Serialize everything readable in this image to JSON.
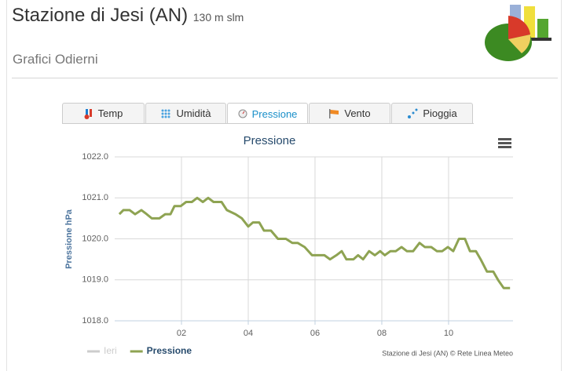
{
  "header": {
    "title": "Stazione di Jesi (AN)",
    "altitude": "130 m slm",
    "subtitle": "Grafici Odierni"
  },
  "tabs": [
    "Temp",
    "Umidità",
    "Pressione",
    "Vento",
    "Pioggia"
  ],
  "active_tab": 2,
  "chart_data": {
    "type": "line",
    "title": "Pressione",
    "y_label": "Pressione hPa",
    "credits": "Stazione di Jesi (AN) © Rete Linea Meteo",
    "xlim": [
      0,
      11.93
    ],
    "xticks": [
      {
        "value": 2,
        "label": "02"
      },
      {
        "value": 4,
        "label": "04"
      },
      {
        "value": 6,
        "label": "06"
      },
      {
        "value": 8,
        "label": "08"
      },
      {
        "value": 10,
        "label": "10"
      }
    ],
    "ylim": [
      1018,
      1022
    ],
    "yticks": [
      {
        "value": 1018,
        "label": "1018.0"
      },
      {
        "value": 1019,
        "label": "1019.0"
      },
      {
        "value": 1020,
        "label": "1020.0"
      },
      {
        "value": 1021,
        "label": "1021.0"
      },
      {
        "value": 1022,
        "label": "1022.0"
      }
    ],
    "grid": true,
    "series": [
      {
        "name": "Ieri",
        "color": "#cccccc",
        "visible": false
      },
      {
        "name": "Pressione",
        "color": "#8ea352",
        "visible": true,
        "x": [
          0.14,
          0.26,
          0.45,
          0.61,
          0.8,
          0.96,
          1.11,
          1.34,
          1.51,
          1.67,
          1.79,
          1.98,
          2.14,
          2.31,
          2.47,
          2.64,
          2.8,
          2.96,
          3.2,
          3.36,
          3.62,
          3.81,
          4.0,
          4.14,
          4.33,
          4.47,
          4.68,
          4.89,
          5.13,
          5.32,
          5.48,
          5.69,
          5.91,
          6.28,
          6.45,
          6.64,
          6.8,
          6.94,
          7.15,
          7.29,
          7.44,
          7.62,
          7.79,
          7.95,
          8.09,
          8.26,
          8.42,
          8.59,
          8.75,
          8.94,
          9.13,
          9.29,
          9.48,
          9.65,
          9.81,
          9.98,
          10.14,
          10.31,
          10.49,
          10.64,
          10.82,
          10.96,
          11.15,
          11.34,
          11.48,
          11.65,
          11.84
        ],
        "values": [
          1020.6,
          1020.7,
          1020.7,
          1020.6,
          1020.7,
          1020.6,
          1020.5,
          1020.5,
          1020.6,
          1020.6,
          1020.8,
          1020.8,
          1020.9,
          1020.9,
          1021.0,
          1020.9,
          1021.0,
          1020.9,
          1020.9,
          1020.7,
          1020.6,
          1020.5,
          1020.3,
          1020.4,
          1020.4,
          1020.2,
          1020.2,
          1020.0,
          1020.0,
          1019.9,
          1019.9,
          1019.8,
          1019.6,
          1019.6,
          1019.5,
          1019.6,
          1019.7,
          1019.5,
          1019.5,
          1019.6,
          1019.5,
          1019.7,
          1019.6,
          1019.7,
          1019.6,
          1019.7,
          1019.7,
          1019.8,
          1019.7,
          1019.7,
          1019.9,
          1019.8,
          1019.8,
          1019.7,
          1019.7,
          1019.8,
          1019.7,
          1020.0,
          1020.0,
          1019.7,
          1019.7,
          1019.5,
          1019.2,
          1019.2,
          1019.0,
          1018.8,
          1018.8
        ]
      }
    ]
  }
}
